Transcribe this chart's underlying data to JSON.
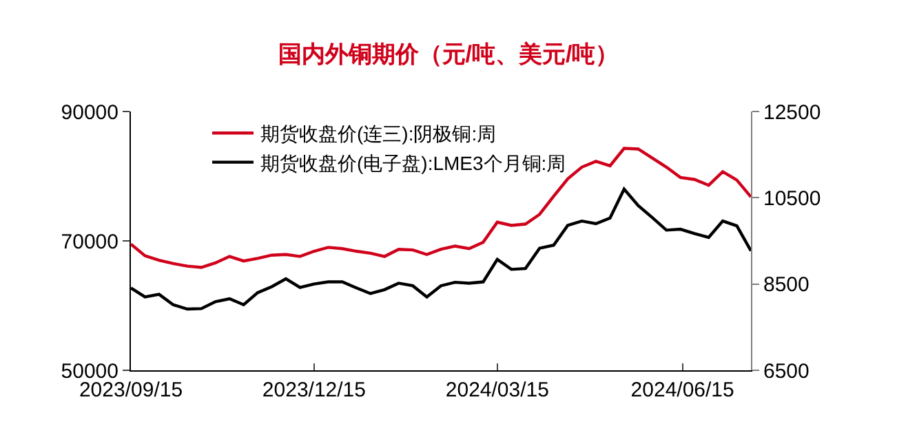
{
  "chart_data": {
    "type": "line",
    "title": "国内外铜期价（元/吨、美元/吨）",
    "x": [
      "2023-09-15",
      "2023-09-22",
      "2023-09-29",
      "2023-10-06",
      "2023-10-13",
      "2023-10-20",
      "2023-10-27",
      "2023-11-03",
      "2023-11-10",
      "2023-11-17",
      "2023-11-24",
      "2023-12-01",
      "2023-12-08",
      "2023-12-15",
      "2023-12-22",
      "2023-12-29",
      "2024-01-05",
      "2024-01-12",
      "2024-01-19",
      "2024-01-26",
      "2024-02-02",
      "2024-02-09",
      "2024-02-16",
      "2024-02-23",
      "2024-03-01",
      "2024-03-08",
      "2024-03-15",
      "2024-03-22",
      "2024-03-29",
      "2024-04-05",
      "2024-04-12",
      "2024-04-19",
      "2024-04-26",
      "2024-05-03",
      "2024-05-10",
      "2024-05-17",
      "2024-05-24",
      "2024-05-31",
      "2024-06-07",
      "2024-06-14",
      "2024-06-21",
      "2024-06-28",
      "2024-07-05",
      "2024-07-12",
      "2024-07-19"
    ],
    "series": [
      {
        "name": "期货收盘价(连三):阴极铜:周",
        "color": "#d0021b",
        "values": [
          69500,
          67700,
          67000,
          66500,
          66100,
          65900,
          66600,
          67600,
          66900,
          67300,
          67800,
          67900,
          67600,
          68400,
          69000,
          68800,
          68400,
          68100,
          67600,
          68700,
          68600,
          67900,
          68700,
          69200,
          68800,
          69800,
          72900,
          72400,
          72600,
          74100,
          76900,
          79600,
          81400,
          82300,
          81600,
          84300,
          84200,
          82800,
          81400,
          79800,
          79500,
          78600,
          80700,
          79400,
          76800
        ]
      },
      {
        "name": "期货收盘价(电子盘):LME3个月铜:周",
        "color": "#000000",
        "axis": "y2",
        "values": [
          8410,
          8200,
          8260,
          8020,
          7920,
          7930,
          8090,
          8160,
          8020,
          8300,
          8440,
          8620,
          8420,
          8500,
          8550,
          8550,
          8410,
          8280,
          8370,
          8520,
          8460,
          8200,
          8460,
          8540,
          8520,
          8550,
          9070,
          8840,
          8860,
          9330,
          9400,
          9860,
          9960,
          9900,
          10030,
          10700,
          10320,
          10040,
          9750,
          9770,
          9670,
          9580,
          9960,
          9850,
          9270
        ]
      }
    ],
    "xlim": [
      "2023-09-15",
      "2024-07-19"
    ],
    "xticks": [
      {
        "value": "2023-09-15",
        "label": "2023/09/15"
      },
      {
        "value": "2023-12-15",
        "label": "2023/12/15"
      },
      {
        "value": "2024-03-15",
        "label": "2024/03/15"
      },
      {
        "value": "2024-06-15",
        "label": "2024/06/15"
      }
    ],
    "ylim": [
      50000,
      90000
    ],
    "yticks": [
      50000,
      70000,
      90000
    ],
    "y2lim": [
      6500,
      12500
    ],
    "y2ticks": [
      6500,
      8500,
      10500,
      12500
    ],
    "legend": "top left",
    "marker": "none",
    "line_style": "solid"
  }
}
